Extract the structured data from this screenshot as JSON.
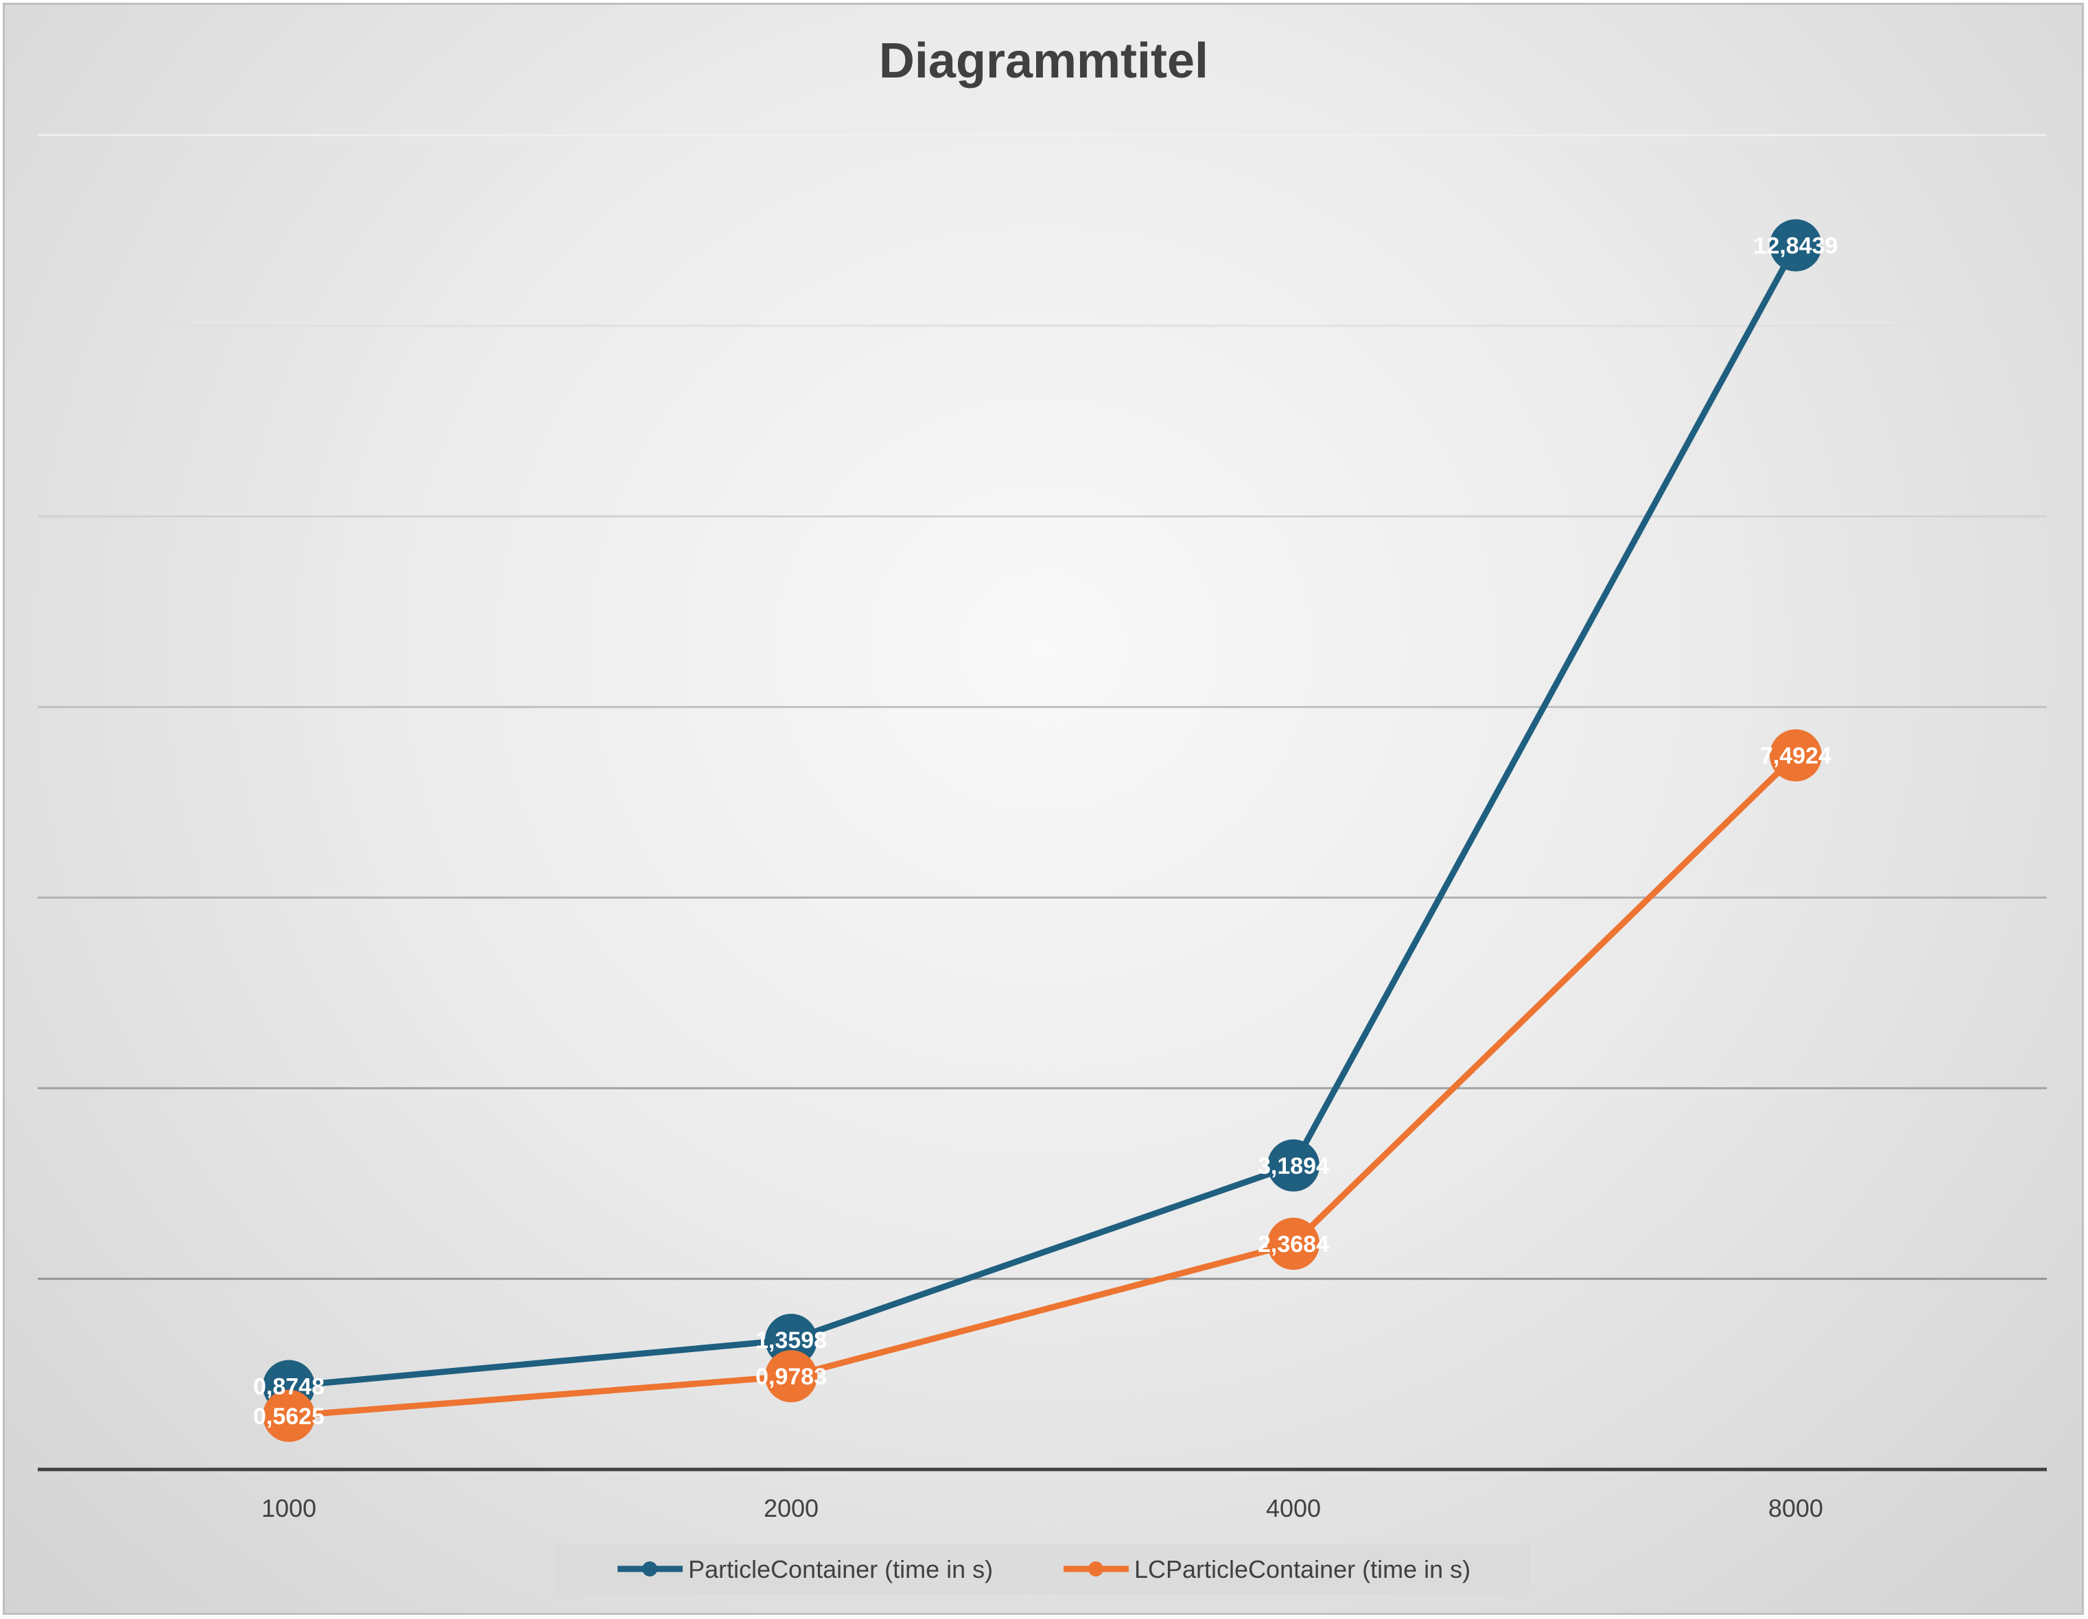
{
  "chart_data": {
    "type": "line",
    "title": "Diagrammtitel",
    "xlabel": "",
    "ylabel": "",
    "categories": [
      "1000",
      "2000",
      "4000",
      "8000"
    ],
    "ylim": [
      0,
      14
    ],
    "grid": true,
    "legend": "bottom",
    "series": [
      {
        "name": "ParticleContainer (time in s)",
        "color": "#1f5f80",
        "values": [
          0.8748,
          1.3598,
          3.1894,
          12.8439
        ],
        "labels": [
          "0,8748",
          "1,3598",
          "3,1894",
          "12,8439"
        ]
      },
      {
        "name": "LCParticleContainer (time in s)",
        "color": "#ed7431",
        "values": [
          0.5625,
          0.9783,
          2.3684,
          7.4924
        ],
        "labels": [
          "0,5625",
          "0,9783",
          "2,3684",
          "7,4924"
        ]
      }
    ]
  }
}
